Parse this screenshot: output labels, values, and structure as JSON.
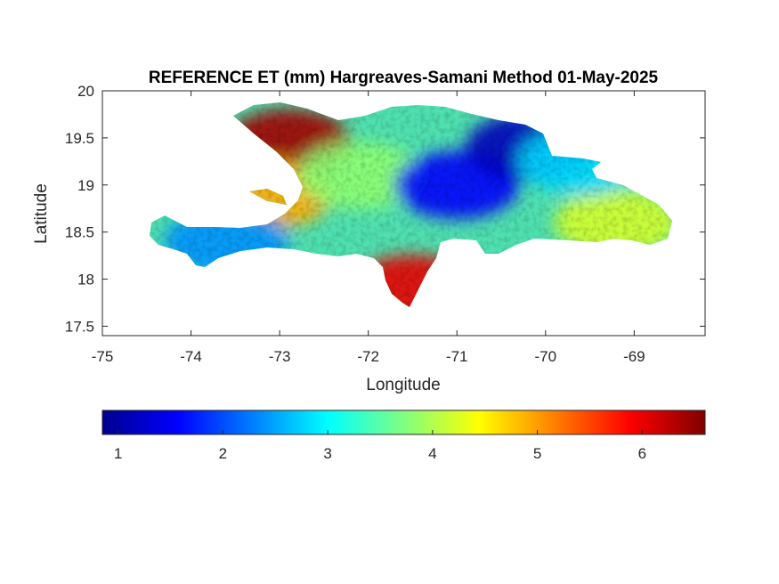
{
  "figure": {
    "title": "REFERENCE ET (mm) Hargreaves-Samani Method  01-May-2025"
  },
  "map": {
    "xlabel": "Longitude",
    "ylabel": "Latitude",
    "xlim": [
      -75,
      -68.2
    ],
    "ylim": [
      17.4,
      20
    ],
    "xticks": [
      -75,
      -74,
      -73,
      -72,
      -71,
      -70,
      -69
    ],
    "xtick_labels": [
      "-75",
      "-74",
      "-73",
      "-72",
      "-71",
      "-70",
      "-69"
    ],
    "yticks": [
      17.5,
      18,
      18.5,
      19,
      19.5,
      20
    ],
    "ytick_labels": [
      "17.5",
      "18",
      "18.5",
      "19",
      "19.5",
      "20"
    ],
    "colormap": "jet",
    "region_values": [
      {
        "name": "northwest-peninsula",
        "lat": 19.45,
        "lon": -72.9,
        "value": 6.4
      },
      {
        "name": "gonave-island",
        "lat": 18.9,
        "lon": -73.1,
        "value": 4.9
      },
      {
        "name": "central-plateau",
        "lat": 19.1,
        "lon": -72.1,
        "value": 3.8
      },
      {
        "name": "cordillera-central",
        "lat": 19.0,
        "lon": -71.0,
        "value": 1.6
      },
      {
        "name": "cibao-east",
        "lat": 19.4,
        "lon": -70.2,
        "value": 1.2
      },
      {
        "name": "southern-peninsula",
        "lat": 18.4,
        "lon": -73.6,
        "value": 2.4
      },
      {
        "name": "southwest-dr-coast",
        "lat": 17.9,
        "lon": -71.5,
        "value": 6.0
      },
      {
        "name": "eastern-plain",
        "lat": 18.6,
        "lon": -69.2,
        "value": 4.2
      },
      {
        "name": "samana-peninsula",
        "lat": 19.25,
        "lon": -69.6,
        "value": 2.8
      }
    ]
  },
  "colorbar": {
    "colormap": "jet",
    "range": [
      0.85,
      6.6
    ],
    "ticks": [
      1,
      2,
      3,
      4,
      5,
      6
    ],
    "tick_labels": [
      "1",
      "2",
      "3",
      "4",
      "5",
      "6"
    ]
  }
}
